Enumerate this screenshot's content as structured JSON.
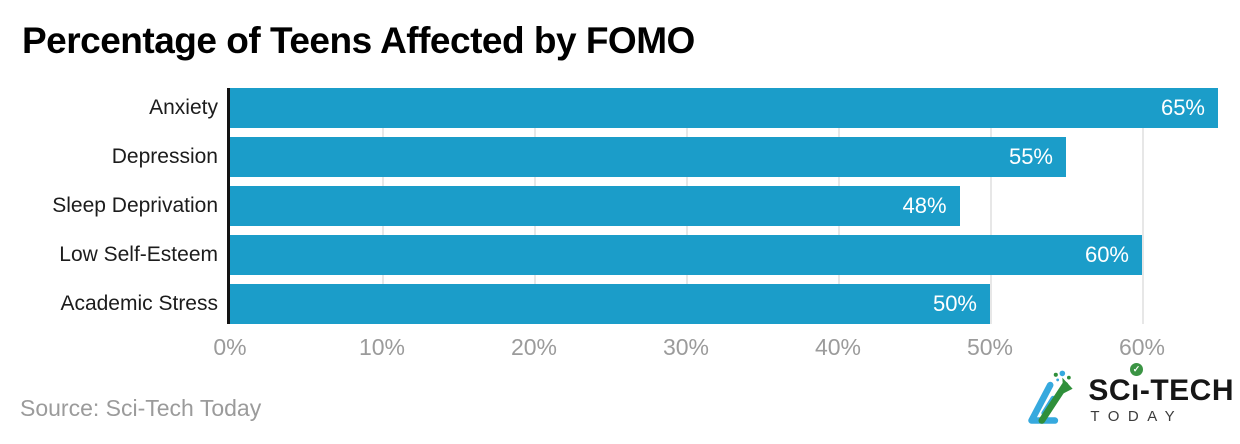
{
  "title": "Percentage of Teens Affected by FOMO",
  "source": "Source: Sci-Tech Today",
  "colors": {
    "bar": "#1b9dc9",
    "axis_line": "#131313",
    "gridline": "#e7e7e7",
    "tick_label": "#9b9b9b",
    "category_label": "#1c1c1c",
    "value_label": "#ffffff",
    "logo_blue": "#36a9de",
    "logo_green": "#2f8f3a"
  },
  "chart_data": {
    "type": "bar",
    "orientation": "horizontal",
    "title": "Percentage of Teens Affected by FOMO",
    "categories": [
      "Anxiety",
      "Depression",
      "Sleep Deprivation",
      "Low Self-Esteem",
      "Academic Stress"
    ],
    "values": [
      65,
      55,
      48,
      60,
      50
    ],
    "value_labels": [
      "65%",
      "55%",
      "48%",
      "60%",
      "50%"
    ],
    "xlabel": "",
    "ylabel": "",
    "x_ticks": [
      "0%",
      "10%",
      "20%",
      "30%",
      "40%",
      "50%",
      "60%"
    ],
    "x_tick_values": [
      0,
      10,
      20,
      30,
      40,
      50,
      60
    ],
    "xlim": [
      0,
      65
    ],
    "grid": true,
    "legend": false
  },
  "logo": {
    "part1": "SC",
    "i_stem": "ı",
    "i_check": "✓",
    "part2": "-TECH",
    "subtext": "TODAY"
  }
}
